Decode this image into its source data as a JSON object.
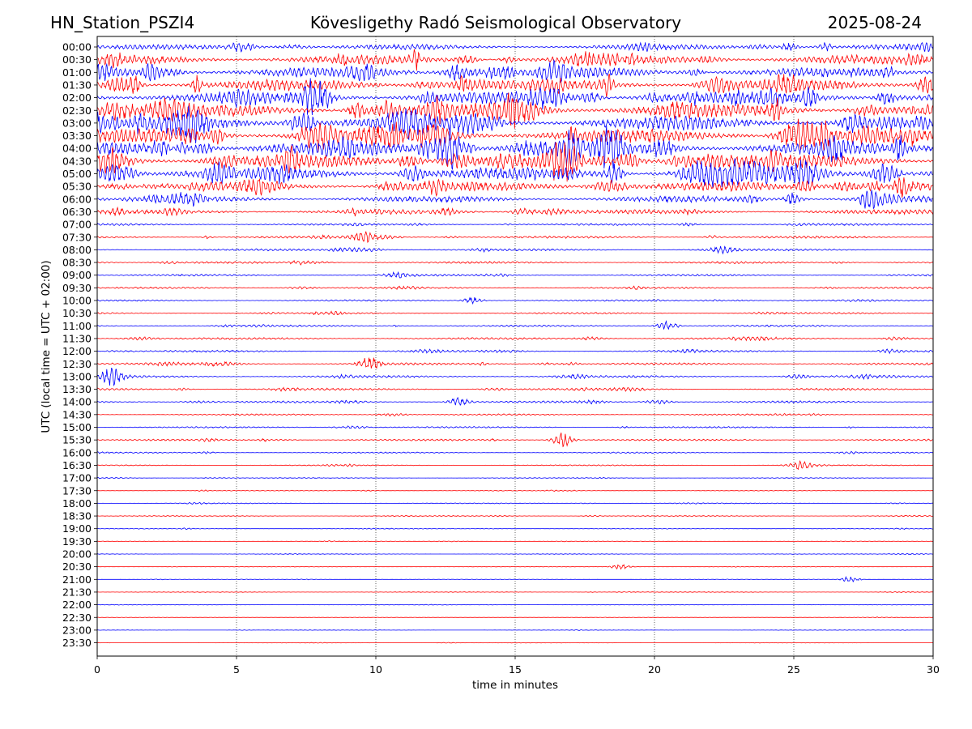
{
  "header": {
    "station": "HN_Station_PSZI4",
    "observatory": "Kövesligethy Radó Seismological Observatory",
    "date": "2025-08-24"
  },
  "chart_data": {
    "type": "line",
    "title": "Kövesligethy Radó Seismological Observatory",
    "xlabel": "time in minutes",
    "ylabel": "UTC (local time = UTC + 02:00)",
    "xlim": [
      0,
      30
    ],
    "xticks": [
      "0",
      "5",
      "10",
      "15",
      "20",
      "25",
      "30"
    ],
    "x_gridlines": [
      5,
      10,
      15,
      20,
      25
    ],
    "grid": "vertical dotted",
    "rows": [
      "00:00",
      "00:30",
      "01:00",
      "01:30",
      "02:00",
      "02:30",
      "03:00",
      "03:30",
      "04:00",
      "04:30",
      "05:00",
      "05:30",
      "06:00",
      "06:30",
      "07:00",
      "07:30",
      "08:00",
      "08:30",
      "09:00",
      "09:30",
      "10:00",
      "10:30",
      "11:00",
      "11:30",
      "12:00",
      "12:30",
      "13:00",
      "13:30",
      "14:00",
      "14:30",
      "15:00",
      "15:30",
      "16:00",
      "16:30",
      "17:00",
      "17:30",
      "18:00",
      "18:30",
      "19:00",
      "19:30",
      "20:00",
      "20:30",
      "21:00",
      "21:30",
      "22:00",
      "22:30",
      "23:00",
      "23:30"
    ],
    "row_activity": [
      0.5,
      0.9,
      1.0,
      1.1,
      1.2,
      1.3,
      1.4,
      1.4,
      1.4,
      1.3,
      1.2,
      0.9,
      0.6,
      0.45,
      0.2,
      0.22,
      0.2,
      0.2,
      0.18,
      0.17,
      0.15,
      0.15,
      0.17,
      0.2,
      0.2,
      0.22,
      0.22,
      0.2,
      0.2,
      0.15,
      0.15,
      0.17,
      0.12,
      0.1,
      0.07,
      0.07,
      0.08,
      0.08,
      0.07,
      0.06,
      0.05,
      0.05,
      0.05,
      0.05,
      0.05,
      0.04,
      0.04,
      0.04
    ],
    "events": [
      {
        "row": "07:30",
        "minute": 9.5,
        "amplitude": 0.6
      },
      {
        "row": "10:00",
        "minute": 13.5,
        "amplitude": 0.35
      },
      {
        "row": "11:00",
        "minute": 20.5,
        "amplitude": 0.5
      },
      {
        "row": "12:30",
        "minute": 9.8,
        "amplitude": 0.8
      },
      {
        "row": "13:00",
        "minute": 0.5,
        "amplitude": 0.9
      },
      {
        "row": "14:00",
        "minute": 13.0,
        "amplitude": 0.5
      },
      {
        "row": "15:30",
        "minute": 16.7,
        "amplitude": 0.8
      },
      {
        "row": "16:30",
        "minute": 25.3,
        "amplitude": 0.5
      },
      {
        "row": "20:30",
        "minute": 18.8,
        "amplitude": 0.3
      },
      {
        "row": "21:00",
        "minute": 27.0,
        "amplitude": 0.3
      }
    ],
    "colors": [
      "#0000ff",
      "#ff0000"
    ]
  }
}
